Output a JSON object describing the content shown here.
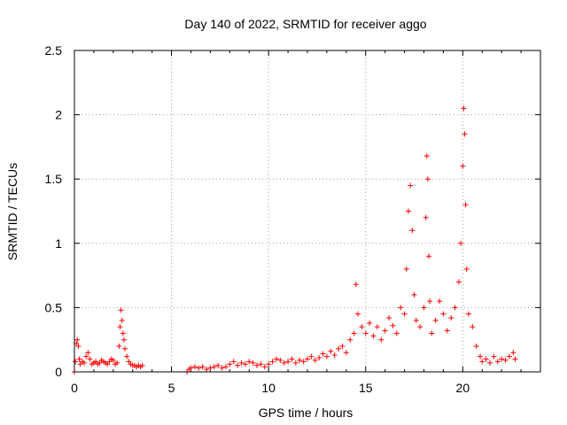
{
  "chart_data": {
    "type": "scatter",
    "title": "Day 140 of 2022, SRMTID for receiver aggo",
    "xlabel": "GPS time / hours",
    "ylabel": "SRMTID / TECUs",
    "xlim": [
      0,
      24
    ],
    "ylim": [
      0,
      2.5
    ],
    "xticks": [
      0,
      5,
      10,
      15,
      20
    ],
    "yticks": [
      0,
      0.5,
      1,
      1.5,
      2,
      2.5
    ],
    "ytick_labels": [
      "0",
      "0.5",
      "1",
      "1.5",
      "2",
      "2.5"
    ],
    "grid": true,
    "marker": "+",
    "color": "#ff0000",
    "series": [
      {
        "name": "SRMTID",
        "x": [
          0.0,
          0.05,
          0.1,
          0.15,
          0.2,
          0.25,
          0.3,
          0.4,
          0.5,
          0.6,
          0.7,
          0.8,
          0.9,
          1.0,
          1.1,
          1.2,
          1.3,
          1.4,
          1.5,
          1.6,
          1.7,
          1.8,
          1.9,
          2.0,
          2.1,
          2.2,
          2.3,
          2.35,
          2.4,
          2.45,
          2.5,
          2.55,
          2.6,
          2.7,
          2.8,
          2.9,
          3.0,
          3.1,
          3.2,
          3.3,
          3.4,
          3.5,
          5.8,
          5.9,
          6.0,
          6.2,
          6.4,
          6.6,
          6.8,
          7.0,
          7.2,
          7.4,
          7.6,
          7.8,
          8.0,
          8.2,
          8.4,
          8.6,
          8.8,
          9.0,
          9.2,
          9.4,
          9.6,
          9.8,
          10.0,
          10.2,
          10.4,
          10.6,
          10.8,
          11.0,
          11.2,
          11.4,
          11.6,
          11.8,
          12.0,
          12.2,
          12.4,
          12.6,
          12.8,
          13.0,
          13.2,
          13.4,
          13.6,
          13.8,
          14.0,
          14.2,
          14.4,
          14.5,
          14.6,
          14.8,
          15.0,
          15.2,
          15.4,
          15.6,
          15.8,
          16.0,
          16.2,
          16.4,
          16.6,
          16.8,
          17.0,
          17.1,
          17.2,
          17.3,
          17.4,
          17.5,
          17.6,
          17.8,
          18.0,
          18.1,
          18.15,
          18.2,
          18.25,
          18.3,
          18.4,
          18.6,
          18.8,
          19.0,
          19.2,
          19.4,
          19.6,
          19.8,
          19.9,
          20.0,
          20.05,
          20.1,
          20.15,
          20.2,
          20.3,
          20.5,
          20.7,
          20.9,
          21.0,
          21.2,
          21.4,
          21.6,
          21.8,
          22.0,
          22.2,
          22.4,
          22.6,
          22.7
        ],
        "y": [
          0.0,
          0.08,
          0.22,
          0.25,
          0.2,
          0.1,
          0.06,
          0.08,
          0.07,
          0.12,
          0.15,
          0.1,
          0.06,
          0.07,
          0.08,
          0.06,
          0.07,
          0.09,
          0.08,
          0.07,
          0.06,
          0.08,
          0.1,
          0.09,
          0.06,
          0.07,
          0.2,
          0.35,
          0.48,
          0.4,
          0.3,
          0.25,
          0.18,
          0.12,
          0.08,
          0.06,
          0.05,
          0.05,
          0.04,
          0.05,
          0.04,
          0.05,
          0.0,
          0.02,
          0.03,
          0.04,
          0.03,
          0.04,
          0.02,
          0.03,
          0.04,
          0.05,
          0.03,
          0.04,
          0.06,
          0.08,
          0.05,
          0.07,
          0.06,
          0.08,
          0.07,
          0.05,
          0.06,
          0.04,
          0.06,
          0.08,
          0.1,
          0.09,
          0.07,
          0.08,
          0.1,
          0.07,
          0.09,
          0.08,
          0.1,
          0.12,
          0.09,
          0.11,
          0.14,
          0.12,
          0.16,
          0.13,
          0.18,
          0.2,
          0.15,
          0.25,
          0.3,
          0.68,
          0.45,
          0.35,
          0.3,
          0.38,
          0.28,
          0.35,
          0.25,
          0.32,
          0.42,
          0.36,
          0.3,
          0.5,
          0.45,
          0.8,
          1.25,
          1.45,
          1.1,
          0.6,
          0.4,
          0.35,
          0.5,
          1.2,
          1.68,
          1.5,
          0.9,
          0.55,
          0.3,
          0.4,
          0.55,
          0.45,
          0.32,
          0.42,
          0.5,
          0.7,
          1.0,
          1.6,
          2.05,
          1.85,
          1.3,
          0.8,
          0.45,
          0.35,
          0.2,
          0.12,
          0.08,
          0.1,
          0.07,
          0.12,
          0.08,
          0.1,
          0.09,
          0.12,
          0.15,
          0.1
        ]
      }
    ]
  }
}
